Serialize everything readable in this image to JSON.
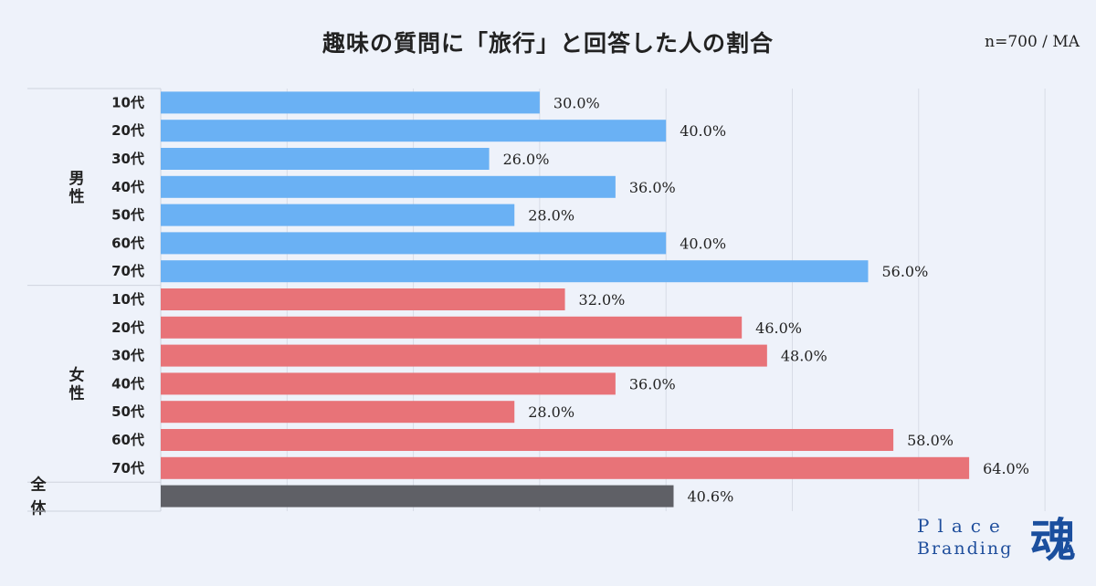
{
  "chart_data": {
    "type": "bar",
    "orientation": "horizontal",
    "title": "趣味の質問に「旅行」と回答した人の割合",
    "note": "n=700 / MA",
    "xlim": [
      0,
      70
    ],
    "grid": true,
    "groups": [
      {
        "name": "男性",
        "color": "#6ab1f4",
        "categories": [
          "10代",
          "20代",
          "30代",
          "40代",
          "50代",
          "60代",
          "70代"
        ],
        "values": [
          30.0,
          40.0,
          26.0,
          36.0,
          28.0,
          40.0,
          56.0
        ],
        "value_labels": [
          "30.0%",
          "40.0%",
          "26.0%",
          "36.0%",
          "28.0%",
          "40.0%",
          "56.0%"
        ]
      },
      {
        "name": "女性",
        "color": "#e87378",
        "categories": [
          "10代",
          "20代",
          "30代",
          "40代",
          "50代",
          "60代",
          "70代"
        ],
        "values": [
          32.0,
          46.0,
          48.0,
          36.0,
          28.0,
          58.0,
          64.0
        ],
        "value_labels": [
          "32.0%",
          "46.0%",
          "48.0%",
          "36.0%",
          "28.0%",
          "58.0%",
          "64.0%"
        ]
      },
      {
        "name": "全体",
        "color": "#5f6066",
        "categories": [
          ""
        ],
        "values": [
          40.6
        ],
        "value_labels": [
          "40.6%"
        ]
      }
    ]
  },
  "logo": {
    "line1": "Place",
    "line2": "Branding",
    "kanji": "魂"
  },
  "colors": {
    "background": "#eef2fa",
    "grid": "#d8dce6",
    "male": "#6ab1f4",
    "female": "#e87378",
    "total": "#5f6066",
    "logo": "#1f4e9c"
  }
}
